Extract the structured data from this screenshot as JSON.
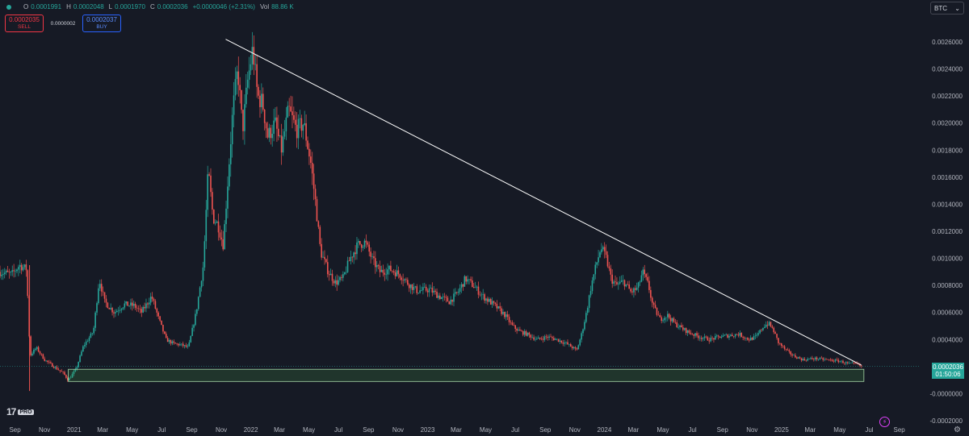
{
  "header": {
    "ohlc": {
      "o_label": "O",
      "o": "0.0001991",
      "h_label": "H",
      "h": "0.0002048",
      "l_label": "L",
      "l": "0.0001970",
      "c_label": "C",
      "c": "0.0002036",
      "change": "+0.0000046 (+2.31%)",
      "vol_label": "Vol",
      "vol": "88.86 K"
    },
    "sell": {
      "price": "0.0002035",
      "label": "SELL"
    },
    "buy": {
      "price": "0.0002037",
      "label": "BUY"
    },
    "spread": "0.0000002",
    "symbol": "BTC"
  },
  "price_label": {
    "value": "0.0002036",
    "countdown": "01:50:06"
  },
  "logo": {
    "tv": "17",
    "pro": "PRO"
  },
  "colors": {
    "background": "#161a25",
    "up": "#26a69a",
    "down": "#ef5350",
    "trendline": "#ffffff",
    "support_zone": "#4caf50",
    "grid": "#1f2330"
  },
  "chart_data": {
    "type": "candlestick",
    "price_scale": {
      "min": -0.0002,
      "max": 0.0026,
      "ticks": [
        "0.0026000",
        "0.0024000",
        "0.0022000",
        "0.0020000",
        "0.0018000",
        "0.0016000",
        "0.0014000",
        "0.0012000",
        "0.0010000",
        "0.0008000",
        "0.0006000",
        "0.0004000",
        "0.0002000",
        "-0.0000000",
        "-0.0002000"
      ]
    },
    "time_ticks": [
      "Sep",
      "Nov",
      "2021",
      "Mar",
      "May",
      "Jul",
      "Sep",
      "Nov",
      "2022",
      "Mar",
      "May",
      "Jul",
      "Sep",
      "Nov",
      "2023",
      "Mar",
      "May",
      "Jul",
      "Sep",
      "Nov",
      "2024",
      "Mar",
      "May",
      "Jul",
      "Sep",
      "Nov",
      "2025",
      "Mar",
      "May",
      "Jul",
      "Sep"
    ],
    "time_range": {
      "start": "2020-08-01",
      "end": "2025-10-15"
    },
    "path": [
      [
        "2020-08-01",
        0.0009
      ],
      [
        "2020-08-25",
        0.00088
      ],
      [
        "2020-09-10",
        0.00095
      ],
      [
        "2020-09-25",
        0.00092
      ],
      [
        "2020-10-02",
        0.00028
      ],
      [
        "2020-10-15",
        0.00034
      ],
      [
        "2020-11-01",
        0.00025
      ],
      [
        "2020-11-20",
        0.0002
      ],
      [
        "2020-12-10",
        0.00015
      ],
      [
        "2020-12-20",
        0.0001
      ],
      [
        "2021-01-05",
        0.00018
      ],
      [
        "2021-01-20",
        0.00035
      ],
      [
        "2021-02-10",
        0.00046
      ],
      [
        "2021-02-22",
        0.00085
      ],
      [
        "2021-03-05",
        0.00068
      ],
      [
        "2021-03-25",
        0.0006
      ],
      [
        "2021-04-15",
        0.00066
      ],
      [
        "2021-05-05",
        0.00065
      ],
      [
        "2021-05-20",
        0.0006
      ],
      [
        "2021-06-10",
        0.00072
      ],
      [
        "2021-06-25",
        0.00055
      ],
      [
        "2021-07-10",
        0.0004
      ],
      [
        "2021-07-25",
        0.00037
      ],
      [
        "2021-08-10",
        0.00036
      ],
      [
        "2021-08-25",
        0.00034
      ],
      [
        "2021-09-10",
        0.0006
      ],
      [
        "2021-09-25",
        0.00095
      ],
      [
        "2021-10-05",
        0.00165
      ],
      [
        "2021-10-15",
        0.0013
      ],
      [
        "2021-10-25",
        0.00125
      ],
      [
        "2021-11-05",
        0.0011
      ],
      [
        "2021-11-15",
        0.0016
      ],
      [
        "2021-11-25",
        0.0021
      ],
      [
        "2021-12-05",
        0.0024
      ],
      [
        "2021-12-15",
        0.00195
      ],
      [
        "2021-12-25",
        0.0023
      ],
      [
        "2022-01-05",
        0.00255
      ],
      [
        "2022-01-15",
        0.0022
      ],
      [
        "2022-01-25",
        0.00215
      ],
      [
        "2022-02-05",
        0.0019
      ],
      [
        "2022-02-20",
        0.002
      ],
      [
        "2022-03-05",
        0.0018
      ],
      [
        "2022-03-20",
        0.0021
      ],
      [
        "2022-04-05",
        0.00195
      ],
      [
        "2022-04-20",
        0.002
      ],
      [
        "2022-05-05",
        0.0017
      ],
      [
        "2022-05-15",
        0.0014
      ],
      [
        "2022-05-25",
        0.00105
      ],
      [
        "2022-06-10",
        0.0009
      ],
      [
        "2022-06-25",
        0.00082
      ],
      [
        "2022-07-10",
        0.00085
      ],
      [
        "2022-07-25",
        0.001
      ],
      [
        "2022-08-10",
        0.0011
      ],
      [
        "2022-08-25",
        0.00112
      ],
      [
        "2022-09-10",
        0.00098
      ],
      [
        "2022-09-25",
        0.0009
      ],
      [
        "2022-10-15",
        0.00092
      ],
      [
        "2022-11-05",
        0.00088
      ],
      [
        "2022-11-20",
        0.00082
      ],
      [
        "2022-12-10",
        0.00076
      ],
      [
        "2023-01-05",
        0.00077
      ],
      [
        "2023-01-25",
        0.00072
      ],
      [
        "2023-02-15",
        0.00068
      ],
      [
        "2023-03-05",
        0.00075
      ],
      [
        "2023-03-20",
        0.00085
      ],
      [
        "2023-04-05",
        0.0008
      ],
      [
        "2023-04-25",
        0.00072
      ],
      [
        "2023-05-20",
        0.00065
      ],
      [
        "2023-06-10",
        0.00058
      ],
      [
        "2023-06-25",
        0.0005
      ],
      [
        "2023-07-10",
        0.00046
      ],
      [
        "2023-07-25",
        0.00044
      ],
      [
        "2023-08-15",
        0.0004
      ],
      [
        "2023-09-05",
        0.00042
      ],
      [
        "2023-09-25",
        0.0004
      ],
      [
        "2023-10-15",
        0.00037
      ],
      [
        "2023-11-05",
        0.00032
      ],
      [
        "2023-11-15",
        0.00044
      ],
      [
        "2023-11-25",
        0.0006
      ],
      [
        "2023-12-05",
        0.0008
      ],
      [
        "2023-12-15",
        0.00095
      ],
      [
        "2023-12-25",
        0.00108
      ],
      [
        "2024-01-05",
        0.001
      ],
      [
        "2024-01-15",
        0.00085
      ],
      [
        "2024-01-25",
        0.0008
      ],
      [
        "2024-02-10",
        0.00083
      ],
      [
        "2024-02-25",
        0.00075
      ],
      [
        "2024-03-10",
        0.00078
      ],
      [
        "2024-03-20",
        0.0009
      ],
      [
        "2024-04-01",
        0.0008
      ],
      [
        "2024-04-10",
        0.00065
      ],
      [
        "2024-04-25",
        0.00055
      ],
      [
        "2024-05-10",
        0.00058
      ],
      [
        "2024-05-25",
        0.00052
      ],
      [
        "2024-06-10",
        0.00048
      ],
      [
        "2024-06-25",
        0.00045
      ],
      [
        "2024-07-15",
        0.00042
      ],
      [
        "2024-08-05",
        0.0004
      ],
      [
        "2024-08-25",
        0.00042
      ],
      [
        "2024-09-15",
        0.00043
      ],
      [
        "2024-10-05",
        0.00044
      ],
      [
        "2024-10-25",
        0.0004
      ],
      [
        "2024-11-10",
        0.00042
      ],
      [
        "2024-11-25",
        0.0005
      ],
      [
        "2024-12-05",
        0.00052
      ],
      [
        "2024-12-15",
        0.00047
      ],
      [
        "2024-12-25",
        0.00038
      ],
      [
        "2025-01-10",
        0.00032
      ],
      [
        "2025-01-25",
        0.00028
      ],
      [
        "2025-02-15",
        0.00025
      ],
      [
        "2025-03-10",
        0.00026
      ],
      [
        "2025-04-05",
        0.00025
      ],
      [
        "2025-05-01",
        0.00024
      ],
      [
        "2025-05-20",
        0.00022
      ],
      [
        "2025-06-05",
        0.00022
      ],
      [
        "2025-06-15",
        0.0002
      ]
    ],
    "trendline": {
      "from": [
        "2021-11-10",
        0.00262
      ],
      "to": [
        "2025-06-15",
        0.00021
      ]
    },
    "support_zone": {
      "from": "2020-12-20",
      "to": "2025-06-20",
      "top": 0.00018,
      "bottom": 9e-05
    },
    "last_price": 0.0002036,
    "grid": false
  }
}
